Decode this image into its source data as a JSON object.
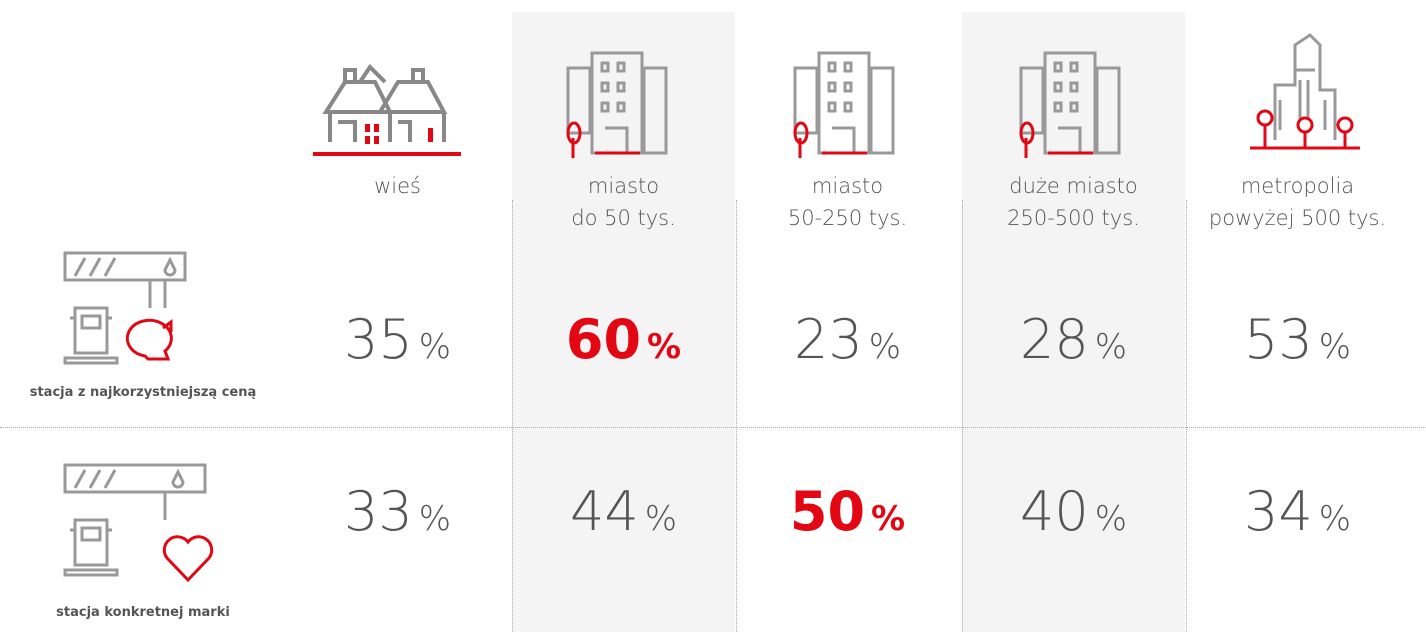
{
  "columns": [
    {
      "label": [
        "wieś"
      ]
    },
    {
      "label": [
        "miasto",
        "do 50 tys."
      ],
      "shaded": true
    },
    {
      "label": [
        "miasto",
        "50-250 tys."
      ]
    },
    {
      "label": [
        "duże miasto",
        "250-500 tys."
      ],
      "shaded": true
    },
    {
      "label": [
        "metropolia",
        "powyżej 500 tys."
      ]
    }
  ],
  "rows": [
    {
      "label": "stacja z najkorzystniejszą ceną",
      "cells": [
        {
          "value": "35",
          "unit": "%"
        },
        {
          "value": "60",
          "unit": "%",
          "highlight": true
        },
        {
          "value": "23",
          "unit": "%"
        },
        {
          "value": "28",
          "unit": "%"
        },
        {
          "value": "53",
          "unit": "%"
        }
      ]
    },
    {
      "label": "stacja konkretnej marki",
      "cells": [
        {
          "value": "33",
          "unit": "%"
        },
        {
          "value": "44",
          "unit": "%"
        },
        {
          "value": "50",
          "unit": "%",
          "highlight": true
        },
        {
          "value": "40",
          "unit": "%"
        },
        {
          "value": "34",
          "unit": "%"
        }
      ]
    }
  ]
}
